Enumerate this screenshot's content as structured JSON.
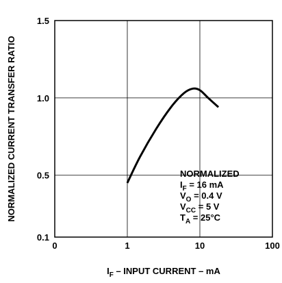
{
  "chart_data": {
    "type": "line",
    "xscale": "log",
    "xlim": [
      0.1,
      100
    ],
    "ylim": [
      0.1,
      1.5
    ],
    "x_tick_labels": [
      "0",
      "1",
      "10",
      "100"
    ],
    "y_ticks": [
      0.1,
      0.5,
      1.0,
      1.5
    ],
    "y_tick_labels": [
      "0.1",
      "0.5",
      "1.0",
      "1.5"
    ],
    "x_gridlines": [
      1,
      10
    ],
    "y_gridlines": [
      0.5,
      1.0
    ],
    "grid": true,
    "xlabel": {
      "main": "I",
      "sub": "F",
      "rest": " – INPUT CURRENT – mA"
    },
    "ylabel": "NORMALIZED CURRENT TRANSFER RATIO",
    "series": [
      {
        "x": [
          1.0,
          1.5,
          2.5,
          4.0,
          6.0,
          8.0,
          10.0,
          13.0,
          18.0
        ],
        "y": [
          0.45,
          0.62,
          0.8,
          0.94,
          1.03,
          1.06,
          1.05,
          1.0,
          0.94
        ]
      }
    ],
    "annotation": [
      {
        "main": "NORMALIZED",
        "sub": "",
        "rest": ""
      },
      {
        "main": "I",
        "sub": "F",
        "rest": " = 16 mA"
      },
      {
        "main": "V",
        "sub": "O",
        "rest": " = 0.4 V"
      },
      {
        "main": "V",
        "sub": "CC",
        "rest": " = 5 V"
      },
      {
        "main": "T",
        "sub": "A",
        "rest": " = 25°C"
      }
    ],
    "annotation_placement": "bottom-right"
  }
}
